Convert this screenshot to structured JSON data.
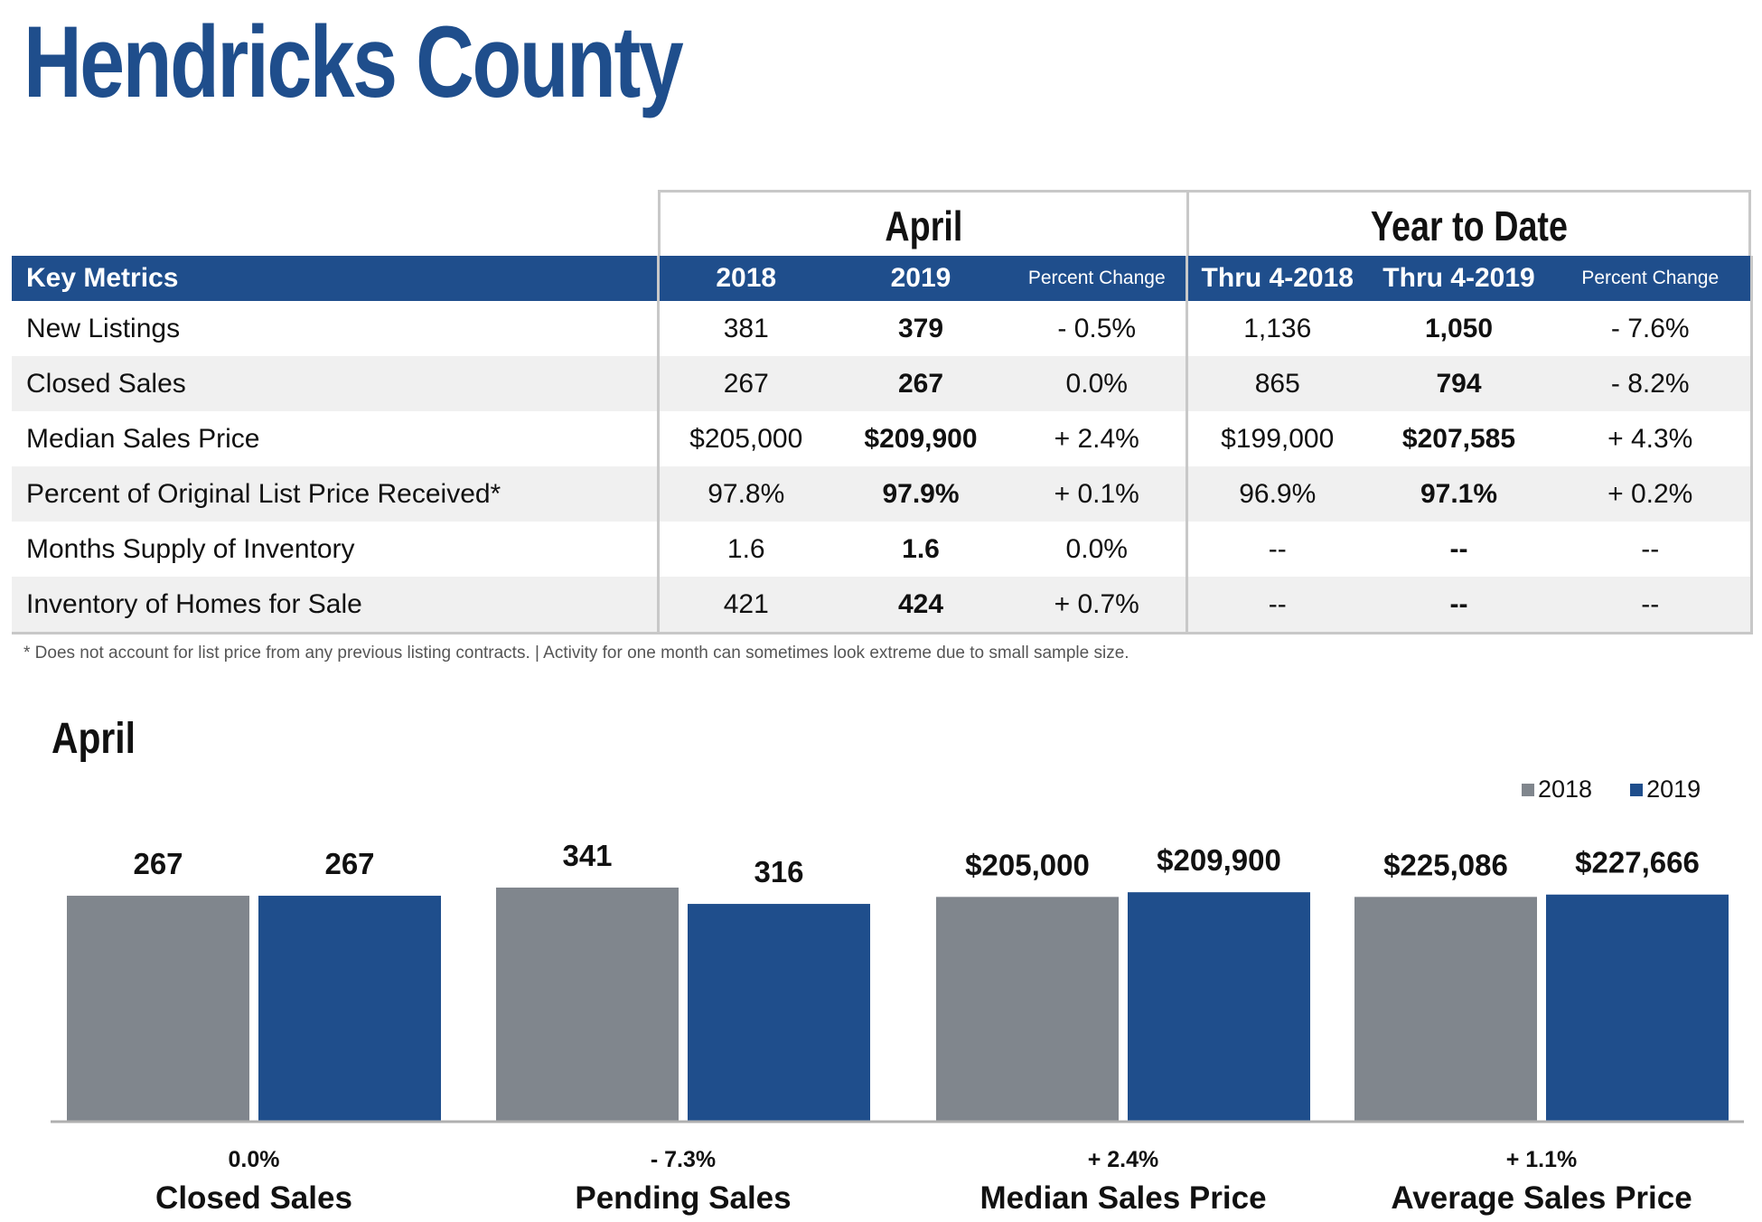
{
  "title": "Hendricks County",
  "table": {
    "group_headers": [
      "April",
      "Year to Date"
    ],
    "columns": [
      "Key Metrics",
      "2018",
      "2019",
      "Percent Change",
      "Thru 4-2018",
      "Thru 4-2019",
      "Percent Change"
    ],
    "rows": [
      {
        "label": "New Listings",
        "cells": [
          "381",
          "379",
          "- 0.5%",
          "1,136",
          "1,050",
          "- 7.6%"
        ]
      },
      {
        "label": "Closed Sales",
        "cells": [
          "267",
          "267",
          "0.0%",
          "865",
          "794",
          "- 8.2%"
        ]
      },
      {
        "label": "Median Sales Price",
        "cells": [
          "$205,000",
          "$209,900",
          "+ 2.4%",
          "$199,000",
          "$207,585",
          "+ 4.3%"
        ]
      },
      {
        "label": "Percent of Original List Price Received*",
        "cells": [
          "97.8%",
          "97.9%",
          "+ 0.1%",
          "96.9%",
          "97.1%",
          "+ 0.2%"
        ]
      },
      {
        "label": "Months Supply of Inventory",
        "cells": [
          "1.6",
          "1.6",
          "0.0%",
          "--",
          "--",
          "--"
        ]
      },
      {
        "label": "Inventory of Homes for Sale",
        "cells": [
          "421",
          "424",
          "+ 0.7%",
          "--",
          "--",
          "--"
        ]
      }
    ]
  },
  "footnote": "* Does not account for list price from any previous listing contracts.  |  Activity for one month can sometimes look extreme due to small sample size.",
  "colors": {
    "brand_blue": "#1f4e8c",
    "gray_2018": "#80868d",
    "header_border": "#c8c8c8"
  },
  "chart_data": {
    "type": "bar",
    "title": "April",
    "legend_position": "top-right",
    "series": [
      {
        "name": "2018",
        "color": "#80868d",
        "labels": [
          "267",
          "341",
          "$205,000",
          "$225,086"
        ],
        "relative_heights": [
          0.965,
          1.0,
          0.96,
          0.96
        ]
      },
      {
        "name": "2019",
        "color": "#1f4e8c",
        "labels": [
          "267",
          "316",
          "$209,900",
          "$227,666"
        ],
        "relative_heights": [
          0.965,
          0.93,
          0.98,
          0.97
        ]
      }
    ],
    "categories": [
      {
        "name": "Closed Sales",
        "change": "0.0%",
        "values": [
          267,
          267
        ]
      },
      {
        "name": "Pending Sales",
        "change": "- 7.3%",
        "values": [
          341,
          316
        ]
      },
      {
        "name": "Median Sales Price",
        "change": "+ 2.4%",
        "values": [
          205000,
          209900
        ]
      },
      {
        "name": "Average Sales Price",
        "change": "+ 1.1%",
        "values": [
          225086,
          227666
        ]
      }
    ]
  }
}
